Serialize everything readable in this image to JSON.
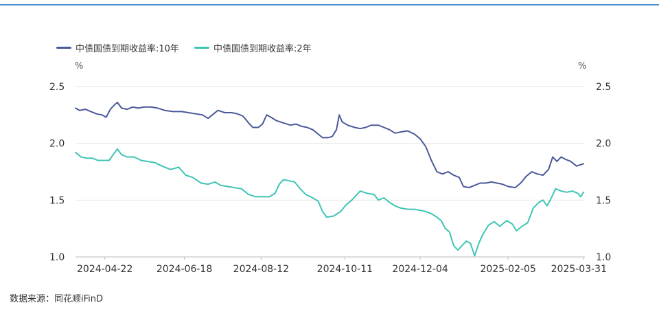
{
  "source_note": "数据来源：同花顺iFinD",
  "colors": {
    "series_10y": "#4b5899",
    "series_2y": "#3ec4b4",
    "grid": "#e6e6e6",
    "axis": "#b8b8b8",
    "top_rule": "#4a8fd6"
  },
  "chart_data": {
    "type": "line",
    "title": "",
    "y_unit_left": "%",
    "y_unit_right": "%",
    "ylim": [
      1.0,
      2.5
    ],
    "y_ticks": [
      1.0,
      1.5,
      2.0,
      2.5
    ],
    "y_tick_labels": [
      "1.0",
      "1.5",
      "2.0",
      "2.5"
    ],
    "x_range": [
      "2024-04-01",
      "2025-04-01"
    ],
    "x_ticks": [
      "2024-04-22",
      "2024-06-18",
      "2024-08-12",
      "2024-10-11",
      "2024-12-04",
      "2025-02-05",
      "2025-03-31"
    ],
    "grid": true,
    "legend": "top-left",
    "series": [
      {
        "name": "中债国债到期收益率:10年",
        "color": "#4b5899",
        "points": [
          [
            "2024-04-01",
            2.31
          ],
          [
            "2024-04-04",
            2.29
          ],
          [
            "2024-04-08",
            2.3
          ],
          [
            "2024-04-12",
            2.28
          ],
          [
            "2024-04-16",
            2.26
          ],
          [
            "2024-04-20",
            2.25
          ],
          [
            "2024-04-23",
            2.23
          ],
          [
            "2024-04-26",
            2.3
          ],
          [
            "2024-04-29",
            2.34
          ],
          [
            "2024-05-01",
            2.36
          ],
          [
            "2024-05-04",
            2.31
          ],
          [
            "2024-05-08",
            2.3
          ],
          [
            "2024-05-12",
            2.32
          ],
          [
            "2024-05-16",
            2.31
          ],
          [
            "2024-05-20",
            2.32
          ],
          [
            "2024-05-25",
            2.32
          ],
          [
            "2024-05-30",
            2.31
          ],
          [
            "2024-06-04",
            2.29
          ],
          [
            "2024-06-10",
            2.28
          ],
          [
            "2024-06-16",
            2.28
          ],
          [
            "2024-06-21",
            2.27
          ],
          [
            "2024-06-26",
            2.26
          ],
          [
            "2024-07-01",
            2.25
          ],
          [
            "2024-07-05",
            2.22
          ],
          [
            "2024-07-09",
            2.26
          ],
          [
            "2024-07-12",
            2.29
          ],
          [
            "2024-07-17",
            2.27
          ],
          [
            "2024-07-22",
            2.27
          ],
          [
            "2024-07-26",
            2.26
          ],
          [
            "2024-07-30",
            2.24
          ],
          [
            "2024-08-03",
            2.18
          ],
          [
            "2024-08-06",
            2.14
          ],
          [
            "2024-08-10",
            2.14
          ],
          [
            "2024-08-13",
            2.17
          ],
          [
            "2024-08-16",
            2.25
          ],
          [
            "2024-08-19",
            2.23
          ],
          [
            "2024-08-23",
            2.2
          ],
          [
            "2024-08-28",
            2.18
          ],
          [
            "2024-09-02",
            2.16
          ],
          [
            "2024-09-06",
            2.17
          ],
          [
            "2024-09-10",
            2.15
          ],
          [
            "2024-09-14",
            2.14
          ],
          [
            "2024-09-18",
            2.12
          ],
          [
            "2024-09-22",
            2.08
          ],
          [
            "2024-09-25",
            2.05
          ],
          [
            "2024-09-29",
            2.05
          ],
          [
            "2024-10-02",
            2.06
          ],
          [
            "2024-10-05",
            2.12
          ],
          [
            "2024-10-07",
            2.25
          ],
          [
            "2024-10-09",
            2.19
          ],
          [
            "2024-10-13",
            2.16
          ],
          [
            "2024-10-18",
            2.14
          ],
          [
            "2024-10-22",
            2.13
          ],
          [
            "2024-10-26",
            2.14
          ],
          [
            "2024-10-30",
            2.16
          ],
          [
            "2024-11-04",
            2.16
          ],
          [
            "2024-11-08",
            2.14
          ],
          [
            "2024-11-12",
            2.12
          ],
          [
            "2024-11-16",
            2.09
          ],
          [
            "2024-11-20",
            2.1
          ],
          [
            "2024-11-25",
            2.11
          ],
          [
            "2024-11-30",
            2.08
          ],
          [
            "2024-12-04",
            2.04
          ],
          [
            "2024-12-08",
            1.97
          ],
          [
            "2024-12-12",
            1.85
          ],
          [
            "2024-12-16",
            1.75
          ],
          [
            "2024-12-20",
            1.73
          ],
          [
            "2024-12-24",
            1.75
          ],
          [
            "2024-12-28",
            1.72
          ],
          [
            "2025-01-01",
            1.7
          ],
          [
            "2025-01-04",
            1.62
          ],
          [
            "2025-01-08",
            1.61
          ],
          [
            "2025-01-12",
            1.63
          ],
          [
            "2025-01-16",
            1.65
          ],
          [
            "2025-01-20",
            1.65
          ],
          [
            "2025-01-24",
            1.66
          ],
          [
            "2025-01-28",
            1.65
          ],
          [
            "2025-02-01",
            1.64
          ],
          [
            "2025-02-05",
            1.62
          ],
          [
            "2025-02-10",
            1.61
          ],
          [
            "2025-02-14",
            1.65
          ],
          [
            "2025-02-18",
            1.71
          ],
          [
            "2025-02-22",
            1.75
          ],
          [
            "2025-02-26",
            1.73
          ],
          [
            "2025-03-02",
            1.72
          ],
          [
            "2025-03-06",
            1.77
          ],
          [
            "2025-03-09",
            1.88
          ],
          [
            "2025-03-12",
            1.84
          ],
          [
            "2025-03-15",
            1.88
          ],
          [
            "2025-03-18",
            1.86
          ],
          [
            "2025-03-22",
            1.84
          ],
          [
            "2025-03-26",
            1.8
          ],
          [
            "2025-03-31",
            1.82
          ]
        ]
      },
      {
        "name": "中债国债到期收益率:2年",
        "color": "#3ec4b4",
        "points": [
          [
            "2024-04-01",
            1.92
          ],
          [
            "2024-04-05",
            1.88
          ],
          [
            "2024-04-09",
            1.87
          ],
          [
            "2024-04-13",
            1.87
          ],
          [
            "2024-04-17",
            1.85
          ],
          [
            "2024-04-21",
            1.85
          ],
          [
            "2024-04-25",
            1.85
          ],
          [
            "2024-04-28",
            1.9
          ],
          [
            "2024-05-01",
            1.95
          ],
          [
            "2024-05-04",
            1.9
          ],
          [
            "2024-05-08",
            1.88
          ],
          [
            "2024-05-13",
            1.88
          ],
          [
            "2024-05-18",
            1.85
          ],
          [
            "2024-05-23",
            1.84
          ],
          [
            "2024-05-28",
            1.83
          ],
          [
            "2024-06-02",
            1.8
          ],
          [
            "2024-06-08",
            1.77
          ],
          [
            "2024-06-14",
            1.79
          ],
          [
            "2024-06-19",
            1.72
          ],
          [
            "2024-06-24",
            1.7
          ],
          [
            "2024-06-30",
            1.65
          ],
          [
            "2024-07-05",
            1.64
          ],
          [
            "2024-07-10",
            1.66
          ],
          [
            "2024-07-14",
            1.63
          ],
          [
            "2024-07-19",
            1.62
          ],
          [
            "2024-07-24",
            1.61
          ],
          [
            "2024-07-29",
            1.6
          ],
          [
            "2024-08-03",
            1.55
          ],
          [
            "2024-08-08",
            1.53
          ],
          [
            "2024-08-13",
            1.53
          ],
          [
            "2024-08-18",
            1.53
          ],
          [
            "2024-08-22",
            1.56
          ],
          [
            "2024-08-25",
            1.64
          ],
          [
            "2024-08-28",
            1.68
          ],
          [
            "2024-09-01",
            1.67
          ],
          [
            "2024-09-05",
            1.66
          ],
          [
            "2024-09-09",
            1.6
          ],
          [
            "2024-09-13",
            1.55
          ],
          [
            "2024-09-18",
            1.52
          ],
          [
            "2024-09-22",
            1.49
          ],
          [
            "2024-09-25",
            1.4
          ],
          [
            "2024-09-28",
            1.35
          ],
          [
            "2024-10-03",
            1.36
          ],
          [
            "2024-10-08",
            1.4
          ],
          [
            "2024-10-12",
            1.46
          ],
          [
            "2024-10-16",
            1.5
          ],
          [
            "2024-10-19",
            1.54
          ],
          [
            "2024-10-22",
            1.58
          ],
          [
            "2024-10-27",
            1.56
          ],
          [
            "2024-11-01",
            1.55
          ],
          [
            "2024-11-04",
            1.5
          ],
          [
            "2024-11-08",
            1.52
          ],
          [
            "2024-11-12",
            1.48
          ],
          [
            "2024-11-16",
            1.45
          ],
          [
            "2024-11-20",
            1.43
          ],
          [
            "2024-11-25",
            1.42
          ],
          [
            "2024-11-30",
            1.42
          ],
          [
            "2024-12-04",
            1.41
          ],
          [
            "2024-12-08",
            1.4
          ],
          [
            "2024-12-12",
            1.38
          ],
          [
            "2024-12-16",
            1.35
          ],
          [
            "2024-12-19",
            1.32
          ],
          [
            "2024-12-22",
            1.25
          ],
          [
            "2024-12-25",
            1.22
          ],
          [
            "2024-12-28",
            1.1
          ],
          [
            "2024-12-31",
            1.06
          ],
          [
            "2025-01-03",
            1.1
          ],
          [
            "2025-01-06",
            1.14
          ],
          [
            "2025-01-09",
            1.12
          ],
          [
            "2025-01-12",
            1.01
          ],
          [
            "2025-01-15",
            1.12
          ],
          [
            "2025-01-18",
            1.2
          ],
          [
            "2025-01-22",
            1.28
          ],
          [
            "2025-01-26",
            1.31
          ],
          [
            "2025-01-30",
            1.27
          ],
          [
            "2025-02-04",
            1.32
          ],
          [
            "2025-02-08",
            1.29
          ],
          [
            "2025-02-11",
            1.23
          ],
          [
            "2025-02-15",
            1.27
          ],
          [
            "2025-02-19",
            1.3
          ],
          [
            "2025-02-23",
            1.43
          ],
          [
            "2025-02-27",
            1.48
          ],
          [
            "2025-03-02",
            1.5
          ],
          [
            "2025-03-05",
            1.45
          ],
          [
            "2025-03-08",
            1.52
          ],
          [
            "2025-03-11",
            1.6
          ],
          [
            "2025-03-15",
            1.58
          ],
          [
            "2025-03-19",
            1.57
          ],
          [
            "2025-03-23",
            1.58
          ],
          [
            "2025-03-27",
            1.56
          ],
          [
            "2025-03-29",
            1.53
          ],
          [
            "2025-03-31",
            1.57
          ]
        ]
      }
    ]
  }
}
